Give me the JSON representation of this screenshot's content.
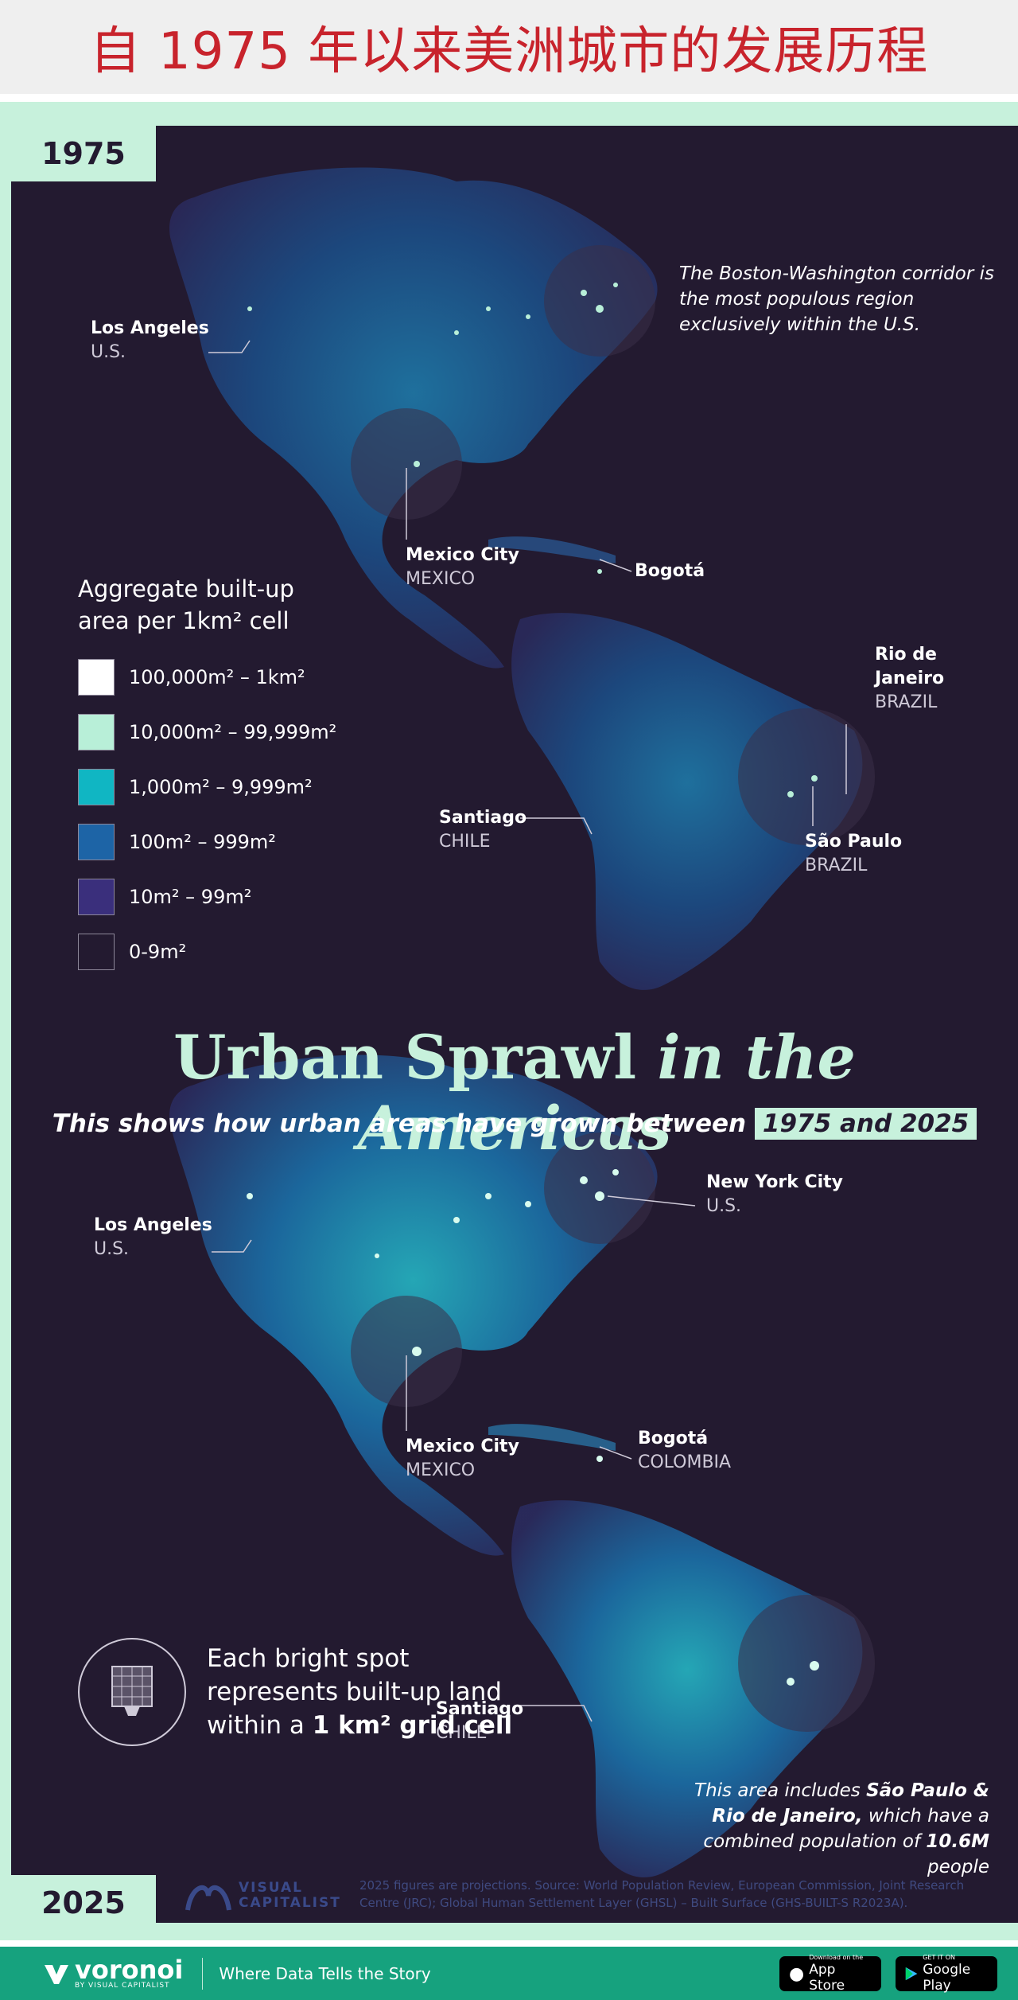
{
  "cn_title": "自 1975 年以来美洲城市的发展历程",
  "headline": {
    "part1": "Urban Sprawl ",
    "part2": "in the Americas"
  },
  "subline": {
    "text": "This shows how urban areas have grown between ",
    "highlight": "1975 and 2025"
  },
  "years": {
    "top": "1975",
    "bottom": "2025"
  },
  "legend": {
    "title": "Aggregate built-up area per 1km² cell",
    "items": [
      {
        "label": "100,000m² – 1km²",
        "color": "#ffffff"
      },
      {
        "label": "10,000m² – 99,999m²",
        "color": "#b8efd8"
      },
      {
        "label": "1,000m² – 9,999m²",
        "color": "#10b6c3"
      },
      {
        "label": "100m² – 999m²",
        "color": "#1d64a6"
      },
      {
        "label": "10m² – 99m²",
        "color": "#3a2f7c"
      },
      {
        "label": "0-9m²",
        "color": "#231a30"
      }
    ]
  },
  "map_1975": {
    "labels": {
      "la": {
        "city": "Los Angeles",
        "country": "U.S."
      },
      "mexico": {
        "city": "Mexico City",
        "country": "MEXICO"
      },
      "bogota": {
        "city": "Bogotá"
      },
      "rio": {
        "city": "Rio de Janeiro",
        "country": "BRAZIL"
      },
      "saopaulo": {
        "city": "São Paulo",
        "country": "BRAZIL"
      },
      "santiago": {
        "city": "Santiago",
        "country": "CHILE"
      }
    },
    "note": "The Boston-Washington corridor is the most populous region exclusively within the U.S."
  },
  "map_2025": {
    "labels": {
      "la": {
        "city": "Los Angeles",
        "country": "U.S."
      },
      "nyc": {
        "city": "New York City",
        "country": "U.S."
      },
      "mexico": {
        "city": "Mexico City",
        "country": "MEXICO"
      },
      "bogota": {
        "city": "Bogotá",
        "country": "COLOMBIA"
      },
      "santiago": {
        "city": "Santiago",
        "country": "CHILE"
      }
    },
    "note": {
      "pre": "This area includes ",
      "b1": "São Paulo & Rio de Janeiro,",
      "mid": " which have a combined population of ",
      "b2": "10.6M",
      "post": " people"
    }
  },
  "grid_note": {
    "pre": "Each bright spot represents built-up land within a ",
    "bold": "1 km² grid cell"
  },
  "logo": {
    "line1": "VISUAL",
    "line2": "CAPITALIST"
  },
  "source": "2025 figures are projections. Source: World Population Review, European Commission, Joint Research Centre (JRC); Global Human Settlement Layer (GHSL) – Built Surface (GHS-BUILT-S R2023A).",
  "footer": {
    "brand": "voronoi",
    "brand_by": "BY VISUAL CAPITALIST",
    "tagline": "Where Data Tells the Story",
    "appstore_small": "Download on the",
    "appstore_big": "App Store",
    "googleplay_small": "GET IT ON",
    "googleplay_big": "Google Play"
  }
}
